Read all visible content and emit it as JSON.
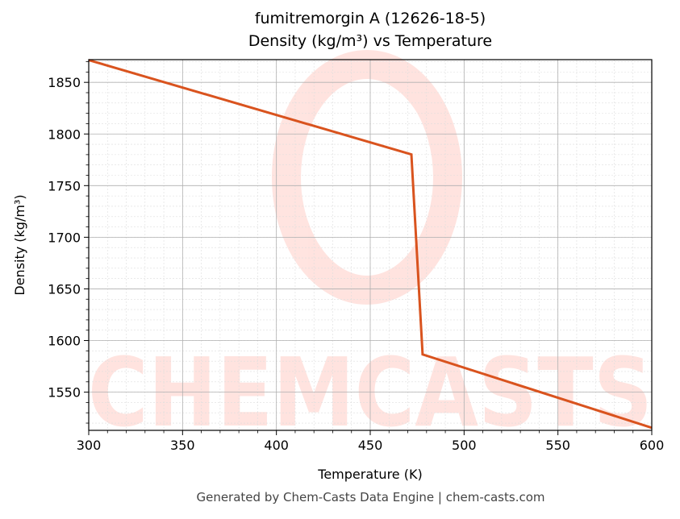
{
  "chart_data": {
    "type": "line",
    "title": "fumitremorgin A (12626-18-5)",
    "subtitle": "Density (kg/m³) vs Temperature",
    "xlabel": "Temperature (K)",
    "ylabel": "Density (kg/m³)",
    "xlim": [
      300,
      600
    ],
    "ylim": [
      1513,
      1872
    ],
    "xticks": [
      300,
      350,
      400,
      450,
      500,
      550,
      600
    ],
    "yticks": [
      1550,
      1600,
      1650,
      1700,
      1750,
      1800,
      1850
    ],
    "grid": true,
    "series": [
      {
        "name": "Density",
        "color": "#d9531e",
        "x": [
          300,
          471.9,
          477.9,
          600
        ],
        "y": [
          1871.5,
          1780.2,
          1586.5,
          1515.5
        ]
      }
    ],
    "watermark": "CHEMCASTS",
    "footer": "Generated by Chem-Casts Data Engine | chem-casts.com"
  }
}
